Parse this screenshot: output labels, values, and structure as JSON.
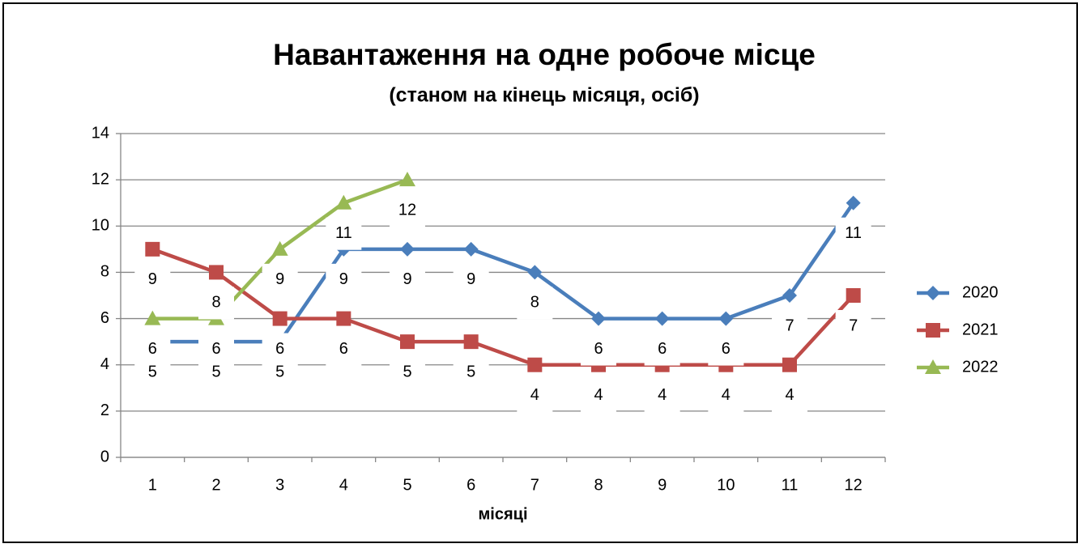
{
  "chart_data": {
    "type": "line",
    "title": "Навантаження на одне робоче місце",
    "subtitle": "(станом на кінець місяця, осіб)",
    "x_label": "місяці",
    "categories": [
      "1",
      "2",
      "3",
      "4",
      "5",
      "6",
      "7",
      "8",
      "9",
      "10",
      "11",
      "12"
    ],
    "series": [
      {
        "name": "2020",
        "color": "#4a7ebb",
        "marker": "diamond",
        "values": [
          5,
          5,
          5,
          9,
          9,
          9,
          8,
          6,
          6,
          6,
          7,
          11
        ]
      },
      {
        "name": "2021",
        "color": "#be4b48",
        "marker": "square",
        "values": [
          9,
          8,
          6,
          6,
          5,
          5,
          4,
          4,
          4,
          4,
          4,
          7
        ]
      },
      {
        "name": "2022",
        "color": "#98b954",
        "marker": "triangle",
        "values": [
          6,
          6,
          9,
          11,
          12,
          null,
          null,
          null,
          null,
          null,
          null,
          null
        ]
      }
    ],
    "ylim": [
      0,
      14
    ],
    "yticks": [
      0,
      2,
      4,
      6,
      8,
      10,
      12,
      14
    ],
    "grid": true,
    "legend": "right",
    "data_labels": true
  }
}
